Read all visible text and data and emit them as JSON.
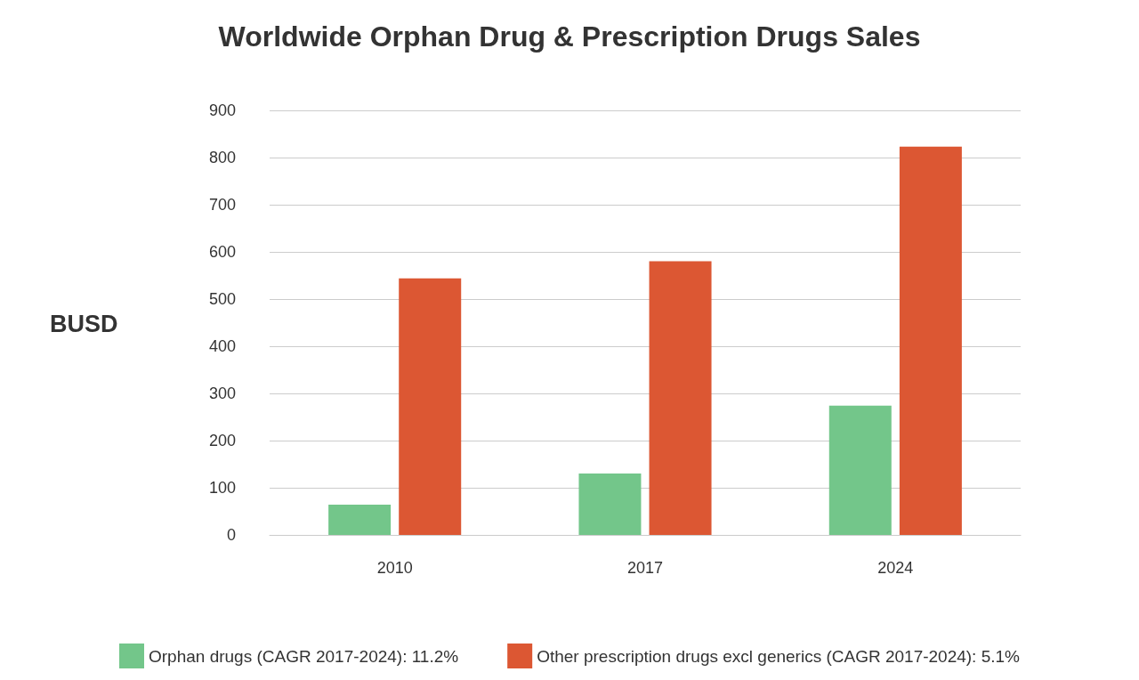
{
  "chart_data": {
    "type": "bar",
    "title": "Worldwide Orphan Drug & Prescription Drugs Sales",
    "ylabel": "BUSD",
    "categories": [
      "2010",
      "2017",
      "2024"
    ],
    "series": [
      {
        "name": "Orphan drugs (CAGR 2017-2024): 11.2%",
        "color": "#73c68a",
        "values": [
          64,
          130,
          274
        ]
      },
      {
        "name": "Other prescription drugs excl generics (CAGR 2017-2024): 5.1%",
        "color": "#dc5733",
        "values": [
          544,
          580,
          823
        ]
      }
    ],
    "ylim": [
      0,
      900
    ],
    "yticks": [
      0,
      100,
      200,
      300,
      400,
      500,
      600,
      700,
      800,
      900
    ],
    "grid": "y",
    "legend": "bottom"
  }
}
